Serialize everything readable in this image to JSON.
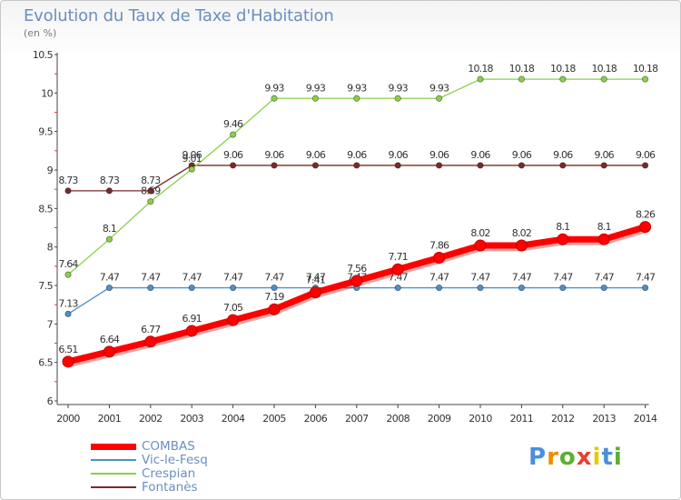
{
  "chart_data": {
    "type": "line",
    "title": "Evolution du Taux de Taxe d'Habitation",
    "unit": "(en %)",
    "x": [
      "2000",
      "2001",
      "2002",
      "2003",
      "2004",
      "2005",
      "2006",
      "2007",
      "2008",
      "2009",
      "2010",
      "2011",
      "2012",
      "2013",
      "2014"
    ],
    "ylim": [
      6,
      10.5
    ],
    "yticks": [
      "6",
      "6.5",
      "7",
      "7.5",
      "8",
      "8.5",
      "9",
      "9.5",
      "10",
      "10.5"
    ],
    "grid": false,
    "legend_position": "bottom-left",
    "series": [
      {
        "name": "COMBAS",
        "color": "#ff0000",
        "values": [
          6.51,
          6.64,
          6.77,
          6.91,
          7.05,
          7.19,
          7.41,
          7.56,
          7.71,
          7.86,
          8.02,
          8.02,
          8.1,
          8.1,
          8.26
        ],
        "labels": [
          "6.51",
          "6.64",
          "6.77",
          "6.91",
          "7.05",
          "7.19",
          "7.41",
          "7.56",
          "7.71",
          "7.86",
          "8.02",
          "8.02",
          "8.1",
          "8.1",
          "8.26"
        ]
      },
      {
        "name": "Vic-le-Fesq",
        "color": "#4f8fc8",
        "values": [
          7.13,
          7.47,
          7.47,
          7.47,
          7.47,
          7.47,
          7.47,
          7.47,
          7.47,
          7.47,
          7.47,
          7.47,
          7.47,
          7.47,
          7.47
        ],
        "labels": [
          "7.13",
          "7.47",
          "7.47",
          "7.47",
          "7.47",
          "7.47",
          "7.47",
          "7.47",
          "7.47",
          "7.47",
          "7.47",
          "7.47",
          "7.47",
          "7.47",
          "7.47"
        ]
      },
      {
        "name": "Crespian",
        "color": "#8ad04a",
        "values": [
          7.64,
          8.1,
          8.59,
          9.01,
          9.46,
          9.93,
          9.93,
          9.93,
          9.93,
          9.93,
          10.18,
          10.18,
          10.18,
          10.18,
          10.18
        ],
        "labels": [
          "7.64",
          "8.1",
          "8.59",
          "9.01",
          "9.46",
          "9.93",
          "9.93",
          "9.93",
          "9.93",
          "9.93",
          "10.18",
          "10.18",
          "10.18",
          "10.18",
          "10.18"
        ]
      },
      {
        "name": "Fontanès",
        "color": "#7a2a2a",
        "values": [
          8.73,
          8.73,
          8.73,
          9.06,
          9.06,
          9.06,
          9.06,
          9.06,
          9.06,
          9.06,
          9.06,
          9.06,
          9.06,
          9.06,
          9.06
        ],
        "labels": [
          "8.73",
          "8.73",
          "8.73",
          "9.06",
          "9.06",
          "9.06",
          "9.06",
          "9.06",
          "9.06",
          "9.06",
          "9.06",
          "9.06",
          "9.06",
          "9.06",
          "9.06"
        ]
      }
    ]
  },
  "logo": {
    "letters": [
      "P",
      "r",
      "o",
      "x",
      "i",
      "t",
      "i"
    ],
    "colors": [
      "#4a90d9",
      "#f08a00",
      "#5ab030",
      "#e84030",
      "#e8c800",
      "#4a90d9",
      "#5ab030"
    ]
  }
}
